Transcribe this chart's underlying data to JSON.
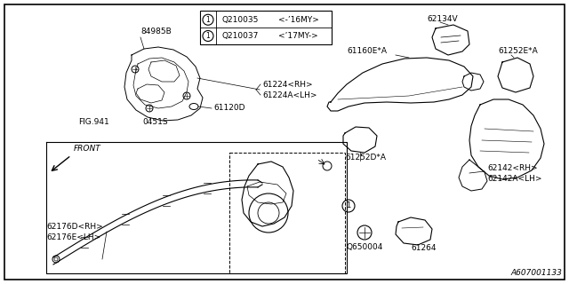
{
  "background_color": "#ffffff",
  "border_color": "#000000",
  "text_color": "#000000",
  "fig_width": 6.4,
  "fig_height": 3.2,
  "dpi": 100,
  "parts_table": {
    "rows": [
      {
        "part_num": "Q210035",
        "desc": "<-’16MY>"
      },
      {
        "part_num": "Q210037",
        "desc": "<’17MY->"
      }
    ]
  },
  "footnote": "A607001133"
}
